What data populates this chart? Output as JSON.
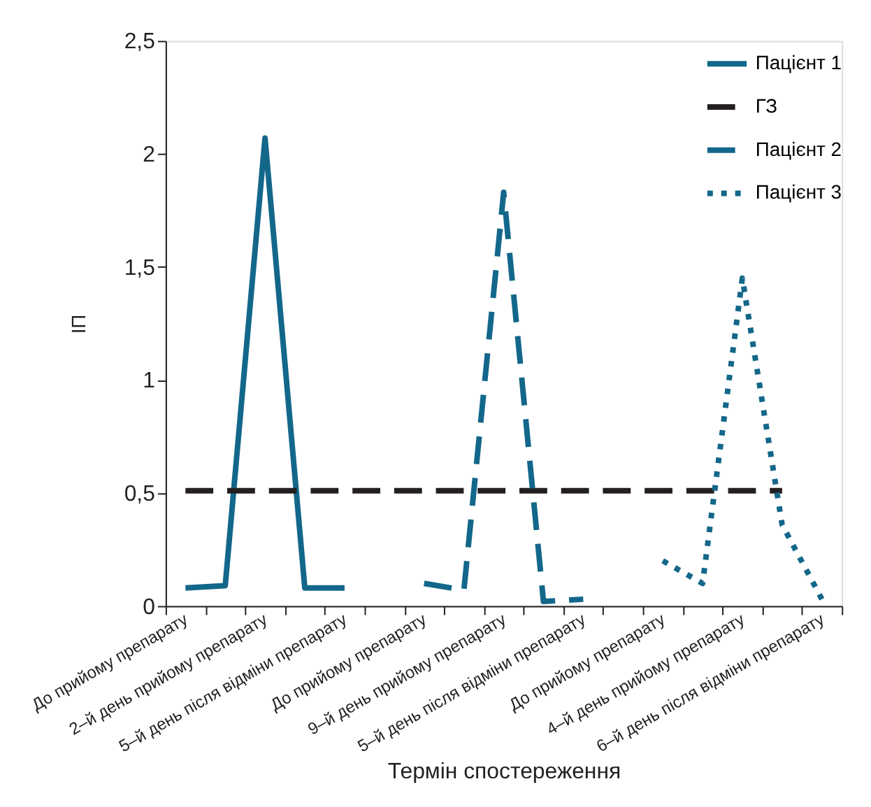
{
  "chart_data": {
    "type": "line",
    "xlabel": "Термін спостереження",
    "ylabel": "ІП",
    "categories": [
      "До прийому препарату",
      null,
      "2–й день прийому препарату",
      null,
      "5–й день після відміни препарату",
      null,
      "До прийому препарату",
      null,
      "9–й день прийому препарату",
      null,
      "5–й день після відміни препарату",
      null,
      "До прийому препарату",
      null,
      "4–й день прийому препарату",
      null,
      "6–й день після відміни препарату"
    ],
    "series": [
      {
        "name": "Пацієнт 1",
        "color": "#13678a",
        "line_style": "solid",
        "values": [
          0.08,
          0.09,
          2.07,
          0.08,
          0.08,
          null,
          null,
          null,
          null,
          null,
          null,
          null,
          null,
          null,
          null,
          null,
          null
        ]
      },
      {
        "name": "ГЗ",
        "color": "#231f20",
        "line_style": "dashed",
        "values": [
          0.51,
          0.51,
          0.51,
          0.51,
          0.51,
          0.51,
          0.51,
          0.51,
          0.51,
          0.51,
          0.51,
          0.51,
          0.51,
          0.51,
          0.51,
          0.51,
          null
        ]
      },
      {
        "name": "Пацієнт 2",
        "color": "#13678a",
        "line_style": "dashed",
        "values": [
          null,
          null,
          null,
          null,
          null,
          null,
          0.1,
          0.07,
          1.83,
          0.02,
          0.03,
          null,
          null,
          null,
          null,
          null,
          null
        ]
      },
      {
        "name": "Пацієнт 3",
        "color": "#13678a",
        "line_style": "dotted",
        "values": [
          null,
          null,
          null,
          null,
          null,
          null,
          null,
          null,
          null,
          null,
          null,
          null,
          0.2,
          0.1,
          1.45,
          0.36,
          0.03
        ]
      }
    ],
    "ylim": [
      0,
      2.5
    ],
    "yticks": [
      0,
      {
        "value": 0.5,
        "label": "0,5"
      },
      1,
      {
        "value": 1.5,
        "label": "1,5"
      },
      2,
      {
        "value": 2.5,
        "label": "2,5"
      }
    ],
    "grid": false,
    "legend": "top right",
    "marker": "none"
  }
}
